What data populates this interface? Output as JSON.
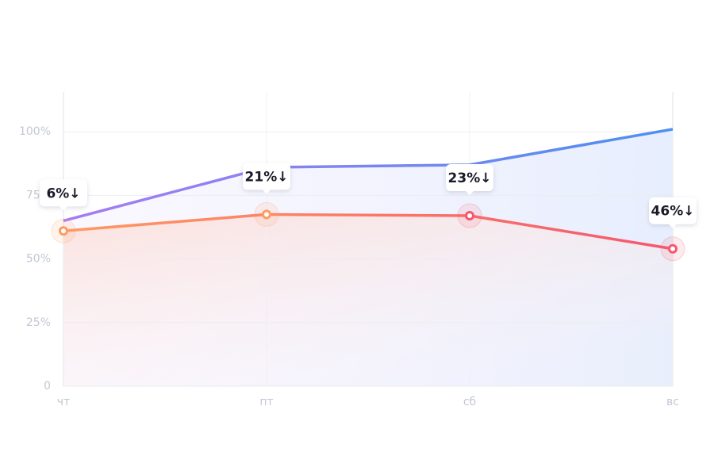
{
  "chart_data": {
    "type": "line",
    "categories": [
      "чт",
      "пт",
      "сб",
      "вс"
    ],
    "series": [
      {
        "colors": [
          "#a77cf2",
          "#4d8ff0"
        ],
        "values": [
          65,
          86,
          87,
          101
        ]
      },
      {
        "colors": [
          "#ff9a62",
          "#f6576d"
        ],
        "values": [
          61,
          67.5,
          67,
          54
        ]
      }
    ],
    "annotations": [
      "6%↓",
      "21%↓",
      "23%↓",
      "46%↓"
    ],
    "ylim": [
      0,
      115
    ],
    "yticks": [
      0,
      {
        "value": 25,
        "label": "25%"
      },
      {
        "value": 50,
        "label": "50%"
      },
      {
        "value": 75,
        "label": "75%"
      },
      {
        "value": 100,
        "label": "100%"
      }
    ],
    "grid": true
  }
}
